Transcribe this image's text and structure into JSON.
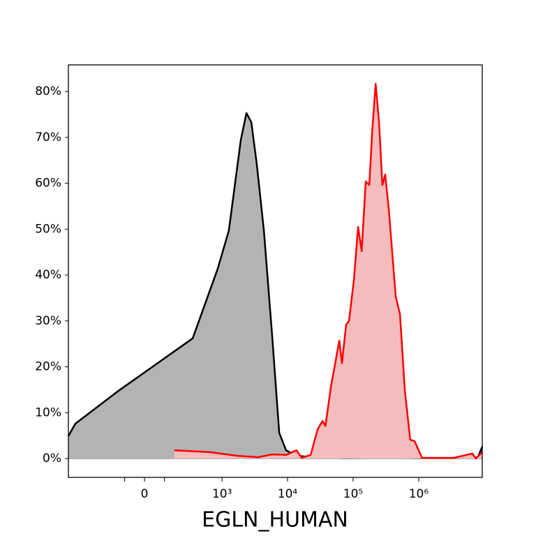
{
  "chart_data": {
    "type": "histogram_overlay",
    "xlabel": "EGLN_HUMAN",
    "xscale": "asinh",
    "linthresh": 132,
    "xlim": [
      -950,
      9300000
    ],
    "xticks": [
      {
        "value": 0,
        "label": "0"
      },
      {
        "value": 1000,
        "label": "10³"
      },
      {
        "value": 10000,
        "label": "10⁴"
      },
      {
        "value": 100000,
        "label": "10⁵"
      },
      {
        "value": 1000000,
        "label": "10⁶"
      }
    ],
    "xminorticks": [
      -100,
      100
    ],
    "ylim": [
      -4.1,
      85.8
    ],
    "yticks": [
      {
        "value": 0,
        "label": "0%"
      },
      {
        "value": 10,
        "label": "10%"
      },
      {
        "value": 20,
        "label": "20%"
      },
      {
        "value": 30,
        "label": "30%"
      },
      {
        "value": 40,
        "label": "40%"
      },
      {
        "value": 50,
        "label": "50%"
      },
      {
        "value": 60,
        "label": "60%"
      },
      {
        "value": 70,
        "label": "70%"
      },
      {
        "value": 80,
        "label": "80%"
      }
    ],
    "series": [
      {
        "color": "#000000",
        "fill": "#b3b3b3",
        "x": [
          -950,
          -743,
          -137,
          346,
          858,
          1271,
          1940,
          2363,
          2800,
          3390,
          4357,
          5820,
          7470,
          9500,
          13700,
          25400,
          86600,
          294000,
          998000,
          3390000,
          7990000,
          9300000
        ],
        "values": [
          4.9,
          7.6,
          14.8,
          26.2,
          41.4,
          49.7,
          69.5,
          75.3,
          73.3,
          64.2,
          49.7,
          26.9,
          5.6,
          1.8,
          0.6,
          0.3,
          0.15,
          0.3,
          0.15,
          0.15,
          0.3,
          2.6
        ]
      },
      {
        "color": "#ff0000",
        "fill": "#f4bcbc",
        "x": [
          165,
          639,
          1716,
          3565,
          5820,
          9500,
          13700,
          16400,
          22500,
          28800,
          34200,
          37800,
          45700,
          55800,
          61600,
          67400,
          78400,
          86600,
          103000,
          119000,
          135000,
          156000,
          176000,
          195000,
          220000,
          248000,
          279000,
          308000,
          350000,
          446000,
          518000,
          614000,
          743000,
          863000,
          1125000,
          3390000,
          6600000,
          7400000,
          9300000
        ],
        "values": [
          1.8,
          1.4,
          0.6,
          0.3,
          0.9,
          0.8,
          1.8,
          0.15,
          0.8,
          6.4,
          8.2,
          7.1,
          15.5,
          22.4,
          25.7,
          20.8,
          29.2,
          30.0,
          39.1,
          50.5,
          45.2,
          60.4,
          59.6,
          71.0,
          81.7,
          73.3,
          59.6,
          61.9,
          54.3,
          35.3,
          31.5,
          14.8,
          4.1,
          3.8,
          0.15,
          0.15,
          1.1,
          0,
          1.4
        ]
      }
    ]
  }
}
